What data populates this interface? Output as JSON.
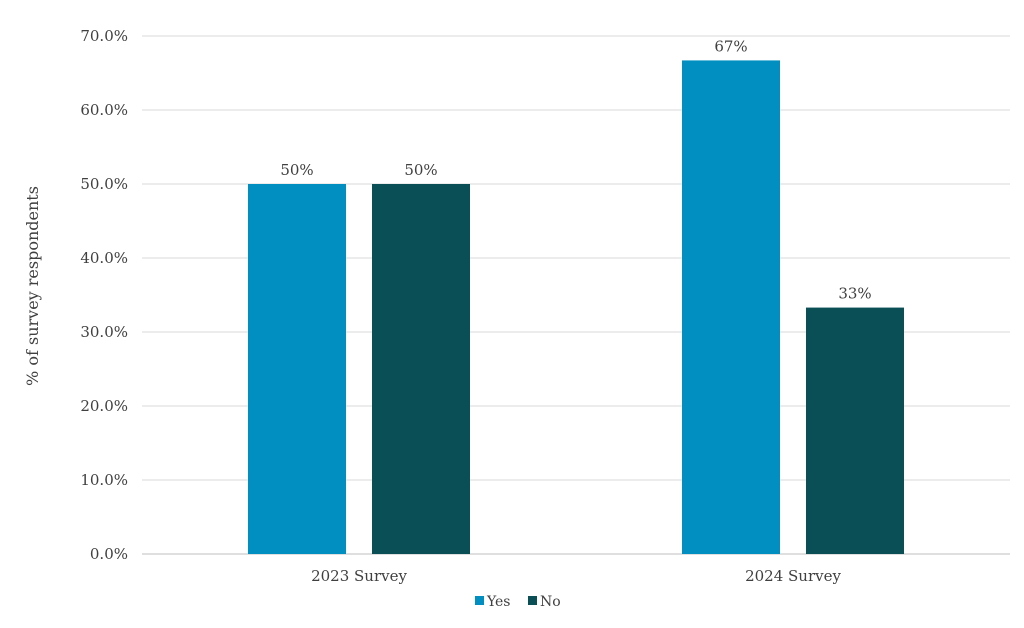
{
  "chart_data": {
    "type": "bar",
    "ylabel": "% of survey respondents",
    "ylim": [
      0,
      70
    ],
    "yticks": [
      0,
      10,
      20,
      30,
      40,
      50,
      60,
      70
    ],
    "ytick_labels": [
      "0.0%",
      "10.0%",
      "20.0%",
      "30.0%",
      "40.0%",
      "50.0%",
      "60.0%",
      "70.0%"
    ],
    "categories": [
      "2023 Survey",
      "2024 Survey"
    ],
    "series": [
      {
        "name": "Yes",
        "color": "#008fc0",
        "values": [
          50,
          66.7
        ],
        "labels": [
          "50%",
          "67%"
        ]
      },
      {
        "name": "No",
        "color": "#0a4f55",
        "values": [
          50,
          33.3
        ],
        "labels": [
          "50%",
          "33%"
        ]
      }
    ],
    "grid": true,
    "legend_position": "bottom"
  }
}
